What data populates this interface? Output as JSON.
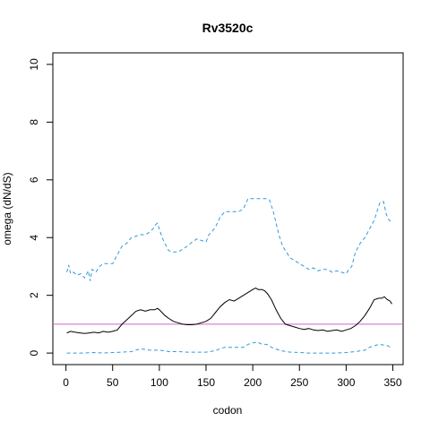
{
  "chart_data": {
    "type": "line",
    "title": "Rv3520c",
    "xlabel": "codon",
    "ylabel": "omega (dN/dS)",
    "xlim": [
      -14,
      361
    ],
    "ylim": [
      -0.4,
      10.4
    ],
    "x_ticks": [
      0,
      50,
      100,
      150,
      200,
      250,
      300,
      350
    ],
    "y_ticks": [
      0,
      2,
      4,
      6,
      8,
      10
    ],
    "grid": false,
    "legend": "none",
    "reference_line": {
      "y": 1,
      "color": "#cc66cc"
    },
    "series": [
      {
        "role": "upper-bound",
        "color": "#3399dd",
        "dash": true,
        "x": [
          1,
          3,
          5,
          8,
          12,
          16,
          20,
          24,
          26,
          28,
          32,
          36,
          40,
          45,
          50,
          55,
          60,
          65,
          70,
          75,
          80,
          85,
          90,
          93,
          96,
          98,
          100,
          103,
          106,
          110,
          115,
          120,
          125,
          130,
          135,
          140,
          145,
          150,
          153,
          156,
          160,
          165,
          170,
          175,
          180,
          185,
          190,
          195,
          200,
          205,
          210,
          215,
          218,
          222,
          225,
          228,
          232,
          236,
          240,
          245,
          250,
          255,
          260,
          265,
          270,
          275,
          280,
          285,
          290,
          295,
          300,
          303,
          306,
          310,
          315,
          320,
          325,
          330,
          333,
          336,
          340,
          343,
          346,
          349
        ],
        "y": [
          2.8,
          3.05,
          2.75,
          2.8,
          2.7,
          2.75,
          2.6,
          2.85,
          2.5,
          2.9,
          2.8,
          3.0,
          3.1,
          3.1,
          3.1,
          3.4,
          3.7,
          3.8,
          4.0,
          4.05,
          4.1,
          4.1,
          4.2,
          4.3,
          4.45,
          4.5,
          4.3,
          4.0,
          3.8,
          3.55,
          3.5,
          3.5,
          3.6,
          3.7,
          3.85,
          3.95,
          3.9,
          3.85,
          4.1,
          4.2,
          4.35,
          4.7,
          4.9,
          4.9,
          4.9,
          4.9,
          5.0,
          5.35,
          5.35,
          5.35,
          5.35,
          5.35,
          5.3,
          4.9,
          4.5,
          4.1,
          3.7,
          3.5,
          3.3,
          3.2,
          3.1,
          3.0,
          2.9,
          2.95,
          2.85,
          2.9,
          2.9,
          2.8,
          2.85,
          2.8,
          2.75,
          2.9,
          3.0,
          3.5,
          3.8,
          4.0,
          4.3,
          4.6,
          4.9,
          5.2,
          5.25,
          4.8,
          4.6,
          4.55
        ]
      },
      {
        "role": "estimate",
        "color": "#000000",
        "dash": false,
        "x": [
          1,
          5,
          10,
          15,
          20,
          25,
          30,
          35,
          40,
          45,
          50,
          55,
          60,
          65,
          70,
          75,
          80,
          85,
          90,
          95,
          98,
          100,
          103,
          106,
          110,
          115,
          120,
          125,
          130,
          135,
          140,
          145,
          150,
          155,
          160,
          165,
          170,
          175,
          180,
          185,
          190,
          195,
          200,
          203,
          206,
          210,
          213,
          216,
          220,
          225,
          230,
          235,
          240,
          245,
          250,
          255,
          260,
          265,
          270,
          275,
          280,
          285,
          290,
          295,
          300,
          305,
          310,
          315,
          320,
          325,
          330,
          335,
          338,
          341,
          344,
          347,
          349
        ],
        "y": [
          0.7,
          0.75,
          0.72,
          0.7,
          0.68,
          0.7,
          0.72,
          0.7,
          0.75,
          0.72,
          0.75,
          0.8,
          1.0,
          1.15,
          1.3,
          1.45,
          1.5,
          1.45,
          1.5,
          1.5,
          1.55,
          1.5,
          1.4,
          1.3,
          1.2,
          1.1,
          1.05,
          1.0,
          0.98,
          0.98,
          1.0,
          1.05,
          1.1,
          1.2,
          1.4,
          1.6,
          1.75,
          1.85,
          1.8,
          1.9,
          2.0,
          2.1,
          2.2,
          2.25,
          2.2,
          2.2,
          2.15,
          2.05,
          1.85,
          1.5,
          1.2,
          1.0,
          0.95,
          0.9,
          0.85,
          0.82,
          0.85,
          0.8,
          0.78,
          0.8,
          0.75,
          0.78,
          0.8,
          0.75,
          0.8,
          0.85,
          0.95,
          1.1,
          1.3,
          1.55,
          1.85,
          1.9,
          1.9,
          1.95,
          1.85,
          1.8,
          1.7
        ]
      },
      {
        "role": "lower-bound",
        "color": "#3399dd",
        "dash": true,
        "x": [
          1,
          10,
          20,
          30,
          40,
          50,
          60,
          70,
          75,
          80,
          85,
          90,
          95,
          100,
          105,
          110,
          120,
          130,
          140,
          150,
          160,
          165,
          170,
          180,
          190,
          195,
          200,
          205,
          210,
          215,
          220,
          230,
          240,
          250,
          260,
          270,
          280,
          290,
          300,
          310,
          320,
          325,
          330,
          335,
          340,
          345,
          349
        ],
        "y": [
          0.0,
          0.0,
          0.0,
          0.02,
          0.0,
          0.02,
          0.03,
          0.05,
          0.1,
          0.15,
          0.12,
          0.1,
          0.1,
          0.1,
          0.08,
          0.05,
          0.05,
          0.03,
          0.03,
          0.03,
          0.08,
          0.15,
          0.2,
          0.2,
          0.2,
          0.3,
          0.35,
          0.38,
          0.3,
          0.3,
          0.2,
          0.08,
          0.03,
          0.02,
          0.0,
          0.0,
          0.0,
          0.0,
          0.02,
          0.05,
          0.1,
          0.2,
          0.25,
          0.3,
          0.28,
          0.25,
          0.15
        ]
      }
    ]
  }
}
